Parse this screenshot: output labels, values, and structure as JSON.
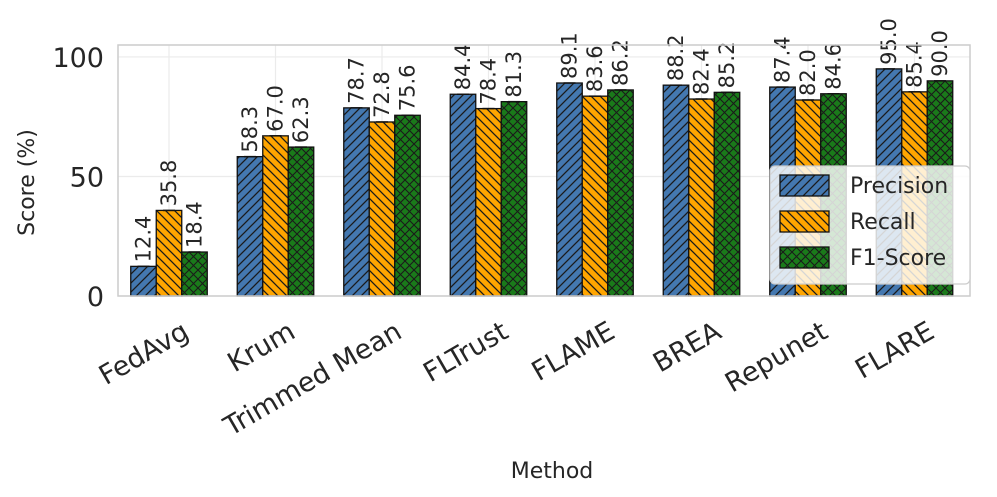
{
  "chart_data": {
    "type": "bar",
    "xlabel": "Method",
    "ylabel": "Score (%)",
    "ylim": [
      0,
      105
    ],
    "yticks": [
      0,
      50,
      100
    ],
    "grid": true,
    "legend_position": "lower-right",
    "categories": [
      "FedAvg",
      "Krum",
      "Trimmed Mean",
      "FLTrust",
      "FLAME",
      "BREA",
      "Repunet",
      "FLARE"
    ],
    "series": [
      {
        "name": "Precision",
        "color": "#4478b0",
        "hatch": "forward-diagonal",
        "values": [
          12.4,
          58.3,
          78.7,
          84.4,
          89.1,
          88.2,
          87.4,
          95.0
        ]
      },
      {
        "name": "Recall",
        "color": "#ffa500",
        "hatch": "back-diagonal",
        "values": [
          35.8,
          67.0,
          72.8,
          78.4,
          83.6,
          82.4,
          82.0,
          85.4
        ]
      },
      {
        "name": "F1-Score",
        "color": "#1a7a1a",
        "hatch": "crosshatch",
        "values": [
          18.4,
          62.3,
          75.6,
          81.3,
          86.2,
          85.2,
          84.6,
          90.0
        ]
      }
    ]
  }
}
